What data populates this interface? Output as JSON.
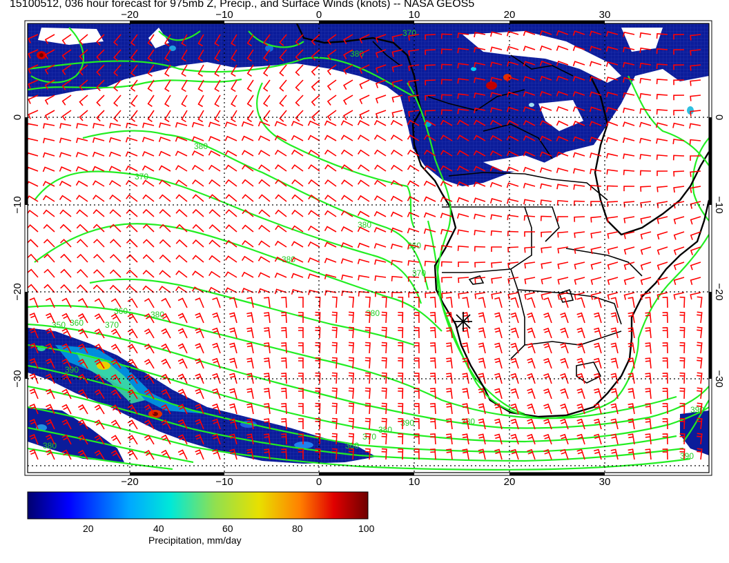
{
  "header": {
    "title": "15100512, 036 hour forecast for 975mb Z, Precip., and Surface Winds (knots) -- NASA GEOS5"
  },
  "map": {
    "lon_ticks": [
      "−20",
      "−10",
      "0",
      "10",
      "20",
      "30"
    ],
    "lat_ticks": [
      "0",
      "−10",
      "−20",
      "−30"
    ],
    "contour_labels": [
      "380",
      "370",
      "380",
      "380",
      "380",
      "370",
      "360",
      "370",
      "380",
      "360",
      "350",
      "390",
      "380",
      "370",
      "360",
      "390",
      "380",
      "370",
      "360",
      "380",
      "380",
      "390",
      "390"
    ],
    "marker": "asterisk",
    "colors": {
      "precip_low": "#0a1a8c",
      "contour": "#22ee22",
      "wind_barb": "#ff0000",
      "land": "#000000"
    }
  },
  "colorbar": {
    "ticks": [
      "20",
      "40",
      "60",
      "80",
      "100"
    ],
    "label": "Precipitation, mm/day",
    "range": [
      0,
      100
    ]
  }
}
